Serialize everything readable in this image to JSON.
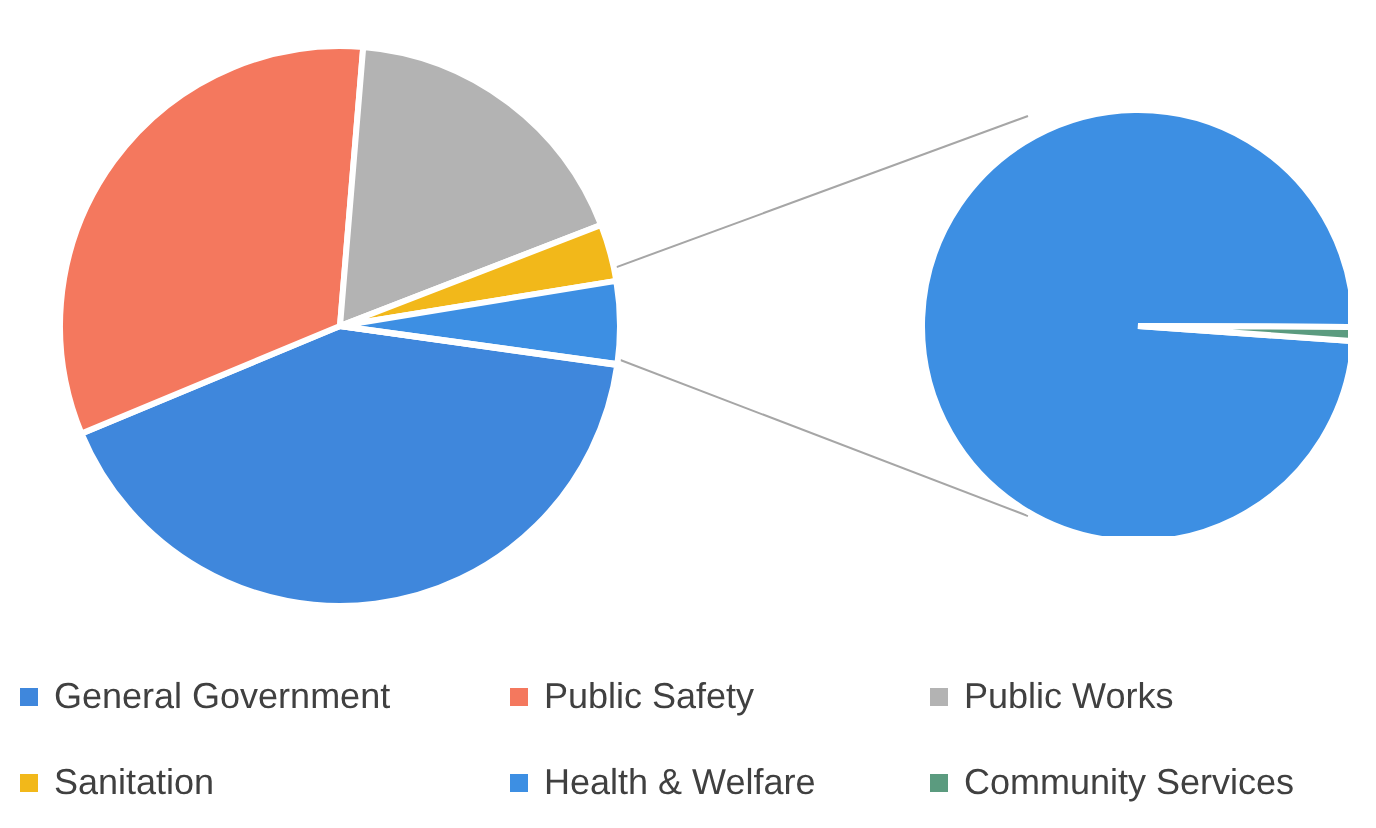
{
  "chart_data": {
    "type": "pie",
    "categories": [
      "General Government",
      "Public Safety",
      "Public Works",
      "Sanitation",
      "Health & Welfare",
      "Community Services"
    ],
    "values": [
      41.5,
      32.6,
      17.8,
      3.3,
      4.75,
      0.05
    ],
    "colors": [
      "#3f87dc",
      "#f4785e",
      "#b3b3b3",
      "#f2b81a",
      "#3d8fe3",
      "#5b9b7f"
    ],
    "legend": "bottom"
  }
}
